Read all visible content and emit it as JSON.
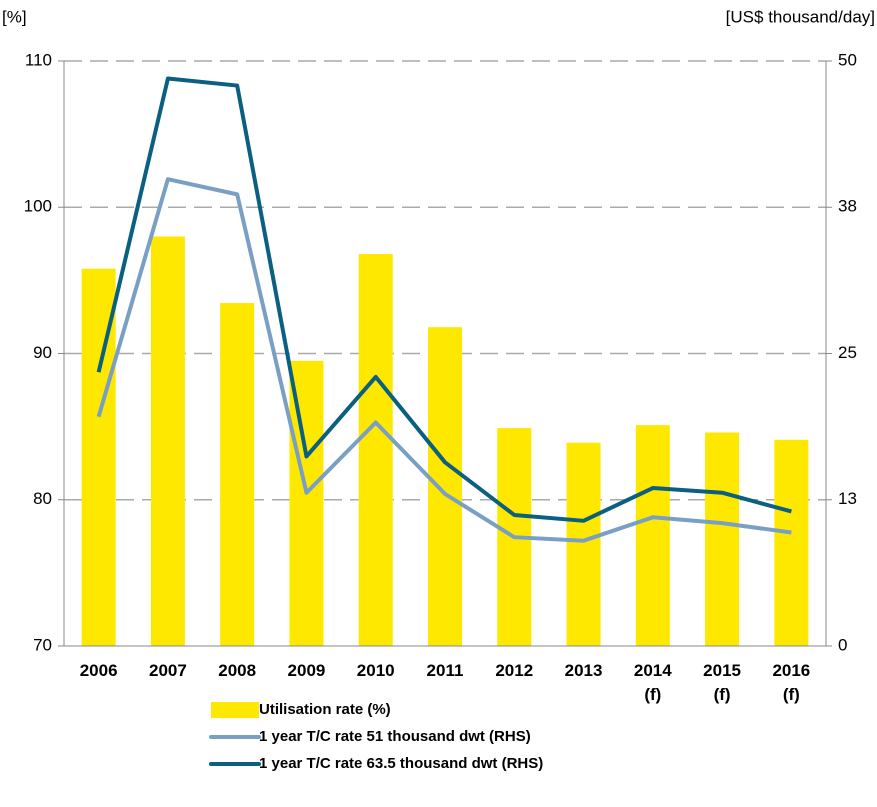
{
  "chart_data": {
    "type": "bar_line",
    "y_label": "[%]",
    "y2_label": "[US$ thousand/day]",
    "categories": [
      "2006",
      "2007",
      "2008",
      "2009",
      "2010",
      "2011",
      "2012",
      "2013",
      "2014\n(f)",
      "2015\n(f)",
      "2016\n(f)"
    ],
    "series": [
      {
        "name": "Utilisation rate (%)",
        "type": "bar",
        "color": "#ffe800",
        "axis": "y",
        "values": [
          95.8,
          98.0,
          93.45,
          89.5,
          96.8,
          91.8,
          84.9,
          83.9,
          85.1,
          84.6,
          84.1
        ]
      },
      {
        "name": "1 year T/C rate 51 thousand dwt (RHS)",
        "type": "line",
        "color": "#7a9fc4",
        "axis": "y2",
        "values": [
          19.6,
          39.9,
          38.6,
          13.1,
          19.1,
          13.0,
          9.3,
          9.0,
          11.0,
          10.5,
          9.7
        ]
      },
      {
        "name": "1 year T/C rate 63.5 thousand dwt (RHS)",
        "type": "line",
        "color": "#0b5f80",
        "axis": "y2",
        "values": [
          23.4,
          48.5,
          47.9,
          16.2,
          23.0,
          15.7,
          11.2,
          10.7,
          13.5,
          13.1,
          11.5
        ]
      }
    ],
    "ylim": [
      70,
      110
    ],
    "yticks": [
      70,
      80,
      90,
      100,
      110
    ],
    "y2lim": [
      0,
      50
    ],
    "y2ticks": [
      0,
      {
        "value": 12.5,
        "label": "13"
      },
      25,
      {
        "value": 37.5,
        "label": "38"
      },
      50
    ],
    "grid": true,
    "legend": "bottom"
  }
}
